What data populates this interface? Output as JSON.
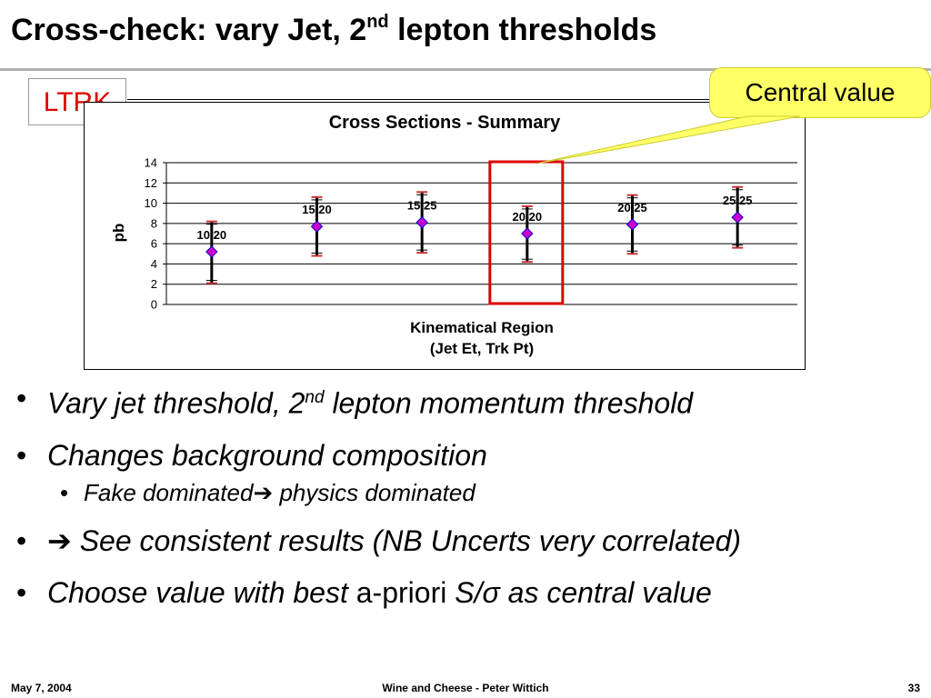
{
  "slide": {
    "title_before": "Cross-check: vary Jet, 2",
    "title_sup": "nd",
    "title_after": " lepton thresholds",
    "ltrk_label": "LTRK",
    "callout": "Central value"
  },
  "chart_data": {
    "type": "scatter",
    "title": "Cross Sections - Summary",
    "xlabel_line1": "Kinematical Region",
    "xlabel_line2": "(Jet Et, Trk Pt)",
    "ylabel": "pb",
    "ylim": [
      0,
      14
    ],
    "yticks": [
      "0",
      "2",
      "4",
      "6",
      "8",
      "10",
      "12",
      "14"
    ],
    "grid": true,
    "highlighted_point": "20 20",
    "points": [
      {
        "label": "10 20",
        "y": 5.2,
        "err_low": 2.1,
        "err_high": 8.2
      },
      {
        "label": "15 20",
        "y": 7.7,
        "err_low": 4.8,
        "err_high": 10.6
      },
      {
        "label": "15 25",
        "y": 8.1,
        "err_low": 5.1,
        "err_high": 11.1
      },
      {
        "label": "20 20",
        "y": 7.0,
        "err_low": 4.2,
        "err_high": 9.7
      },
      {
        "label": "20 25",
        "y": 7.9,
        "err_low": 5.0,
        "err_high": 10.8
      },
      {
        "label": "25 25",
        "y": 8.6,
        "err_low": 5.6,
        "err_high": 11.6
      }
    ],
    "colors": {
      "marker": "#cc00cc",
      "marker_edge": "#0000cc",
      "error_bar": "#000000",
      "error_cap": "#cc3333",
      "highlight": "#e00000"
    }
  },
  "bullets": {
    "b1_before": "Vary jet threshold, 2",
    "b1_sup": "nd",
    "b1_after": " lepton momentum threshold",
    "b2": "Changes background composition",
    "b2_sub_before": "Fake dominated",
    "b2_sub_arrow": "➔",
    "b2_sub_after": " physics dominated",
    "b3_arrow": "➔",
    "b3_text": " See consistent results (NB Uncerts very correlated)",
    "b4_before": "Choose value with best ",
    "b4_upright": "a-priori",
    "b4_after": " S/σ as central value"
  },
  "footer": {
    "date": "May 7, 2004",
    "center": "Wine and Cheese - Peter Wittich",
    "page": "33"
  }
}
